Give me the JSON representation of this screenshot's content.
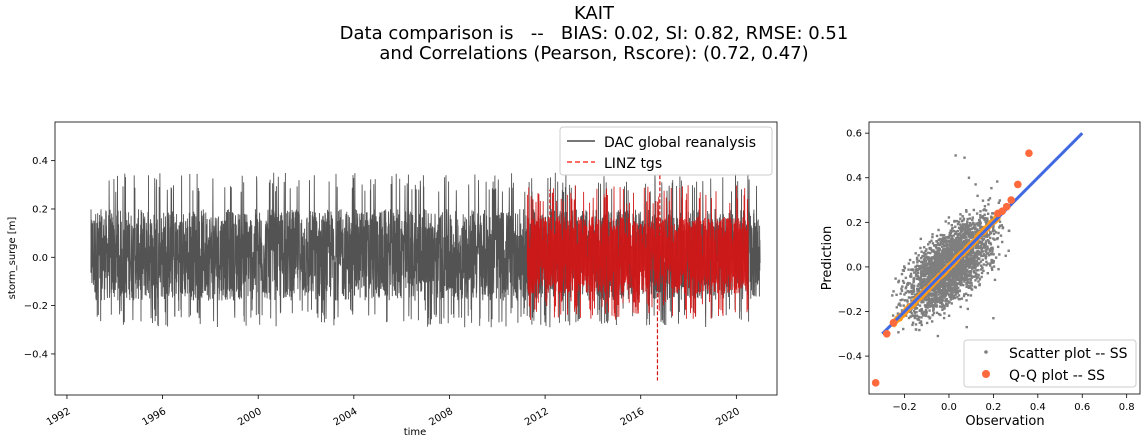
{
  "figure": {
    "title_lines": [
      "KAIT",
      "Data comparison is   --   BIAS: 0.02, SI: 0.82, RMSE: 0.51",
      "and Correlations (Pearson, Rscore): (0.72, 0.47)"
    ]
  },
  "chart_data": [
    {
      "type": "line",
      "xlabel": "time",
      "ylabel": "storm_surge [m]",
      "xlim": [
        1991.5,
        2021.7
      ],
      "ylim": [
        -0.57,
        0.56
      ],
      "x_ticks": [
        1992,
        1996,
        2000,
        2004,
        2008,
        2012,
        2016,
        2020
      ],
      "y_ticks": [
        -0.4,
        -0.2,
        0.0,
        0.2,
        0.4
      ],
      "y_tick_labels": [
        "−0.4",
        "−0.2",
        "0.0",
        "0.2",
        "0.4"
      ],
      "legend_position": "top-right",
      "grid": false,
      "series": [
        {
          "name": "DAC global reanalysis",
          "style": "solid",
          "color": "#4a4a4a",
          "x_range": [
            1993.0,
            2021.0
          ],
          "typical_band": [
            -0.18,
            0.2
          ],
          "extreme_range": [
            -0.29,
            0.35
          ]
        },
        {
          "name": "LINZ tgs",
          "style": "dashed",
          "color": "#d21515",
          "x_range": [
            2011.25,
            2020.5
          ],
          "typical_band": [
            -0.15,
            0.17
          ],
          "extreme_range": [
            -0.26,
            0.3
          ],
          "spikes": [
            {
              "x": 2012.2,
              "y": 0.28
            },
            {
              "x": 2016.7,
              "y": -0.51
            },
            {
              "x": 2016.8,
              "y": 0.35
            }
          ]
        }
      ]
    },
    {
      "type": "scatter",
      "xlabel": "Observation",
      "ylabel": "Prediction",
      "xlim": [
        -0.36,
        0.86
      ],
      "ylim": [
        -0.57,
        0.65
      ],
      "x_ticks": [
        -0.2,
        0.0,
        0.2,
        0.4,
        0.6,
        0.8
      ],
      "x_tick_labels": [
        "−0.2",
        "0.0",
        "0.2",
        "0.4",
        "0.6",
        "0.8"
      ],
      "y_ticks": [
        -0.4,
        -0.2,
        0.0,
        0.2,
        0.4,
        0.6
      ],
      "y_tick_labels": [
        "−0.4",
        "−0.2",
        "0.0",
        "0.2",
        "0.4",
        "0.6"
      ],
      "legend_position": "lower-right",
      "grid": false,
      "reference_line": {
        "x": [
          -0.3,
          0.6
        ],
        "y": [
          -0.3,
          0.6
        ],
        "color": "#4169e1"
      },
      "series": [
        {
          "name": "Scatter plot -- SS",
          "color": "#7f7f7f",
          "cloud": {
            "x_range": [
              -0.28,
              0.3
            ],
            "slope": 0.72,
            "spread": 0.085
          },
          "outliers": [
            [
              0.03,
              0.5
            ],
            [
              0.07,
              0.49
            ],
            [
              0.09,
              0.4
            ],
            [
              0.12,
              0.37
            ],
            [
              0.2,
              -0.23
            ],
            [
              0.08,
              -0.27
            ],
            [
              -0.05,
              -0.31
            ]
          ]
        },
        {
          "name": "Q-Q plot -- SS",
          "color": "#ff6a3d",
          "line_color": "#ff9a1a",
          "quantile_points": [
            [
              -0.33,
              -0.52
            ],
            [
              -0.28,
              -0.3
            ],
            [
              -0.25,
              -0.25
            ],
            [
              0.22,
              0.24
            ],
            [
              0.24,
              0.25
            ],
            [
              0.26,
              0.27
            ],
            [
              0.28,
              0.3
            ],
            [
              0.31,
              0.37
            ],
            [
              0.36,
              0.51
            ]
          ]
        }
      ]
    }
  ]
}
